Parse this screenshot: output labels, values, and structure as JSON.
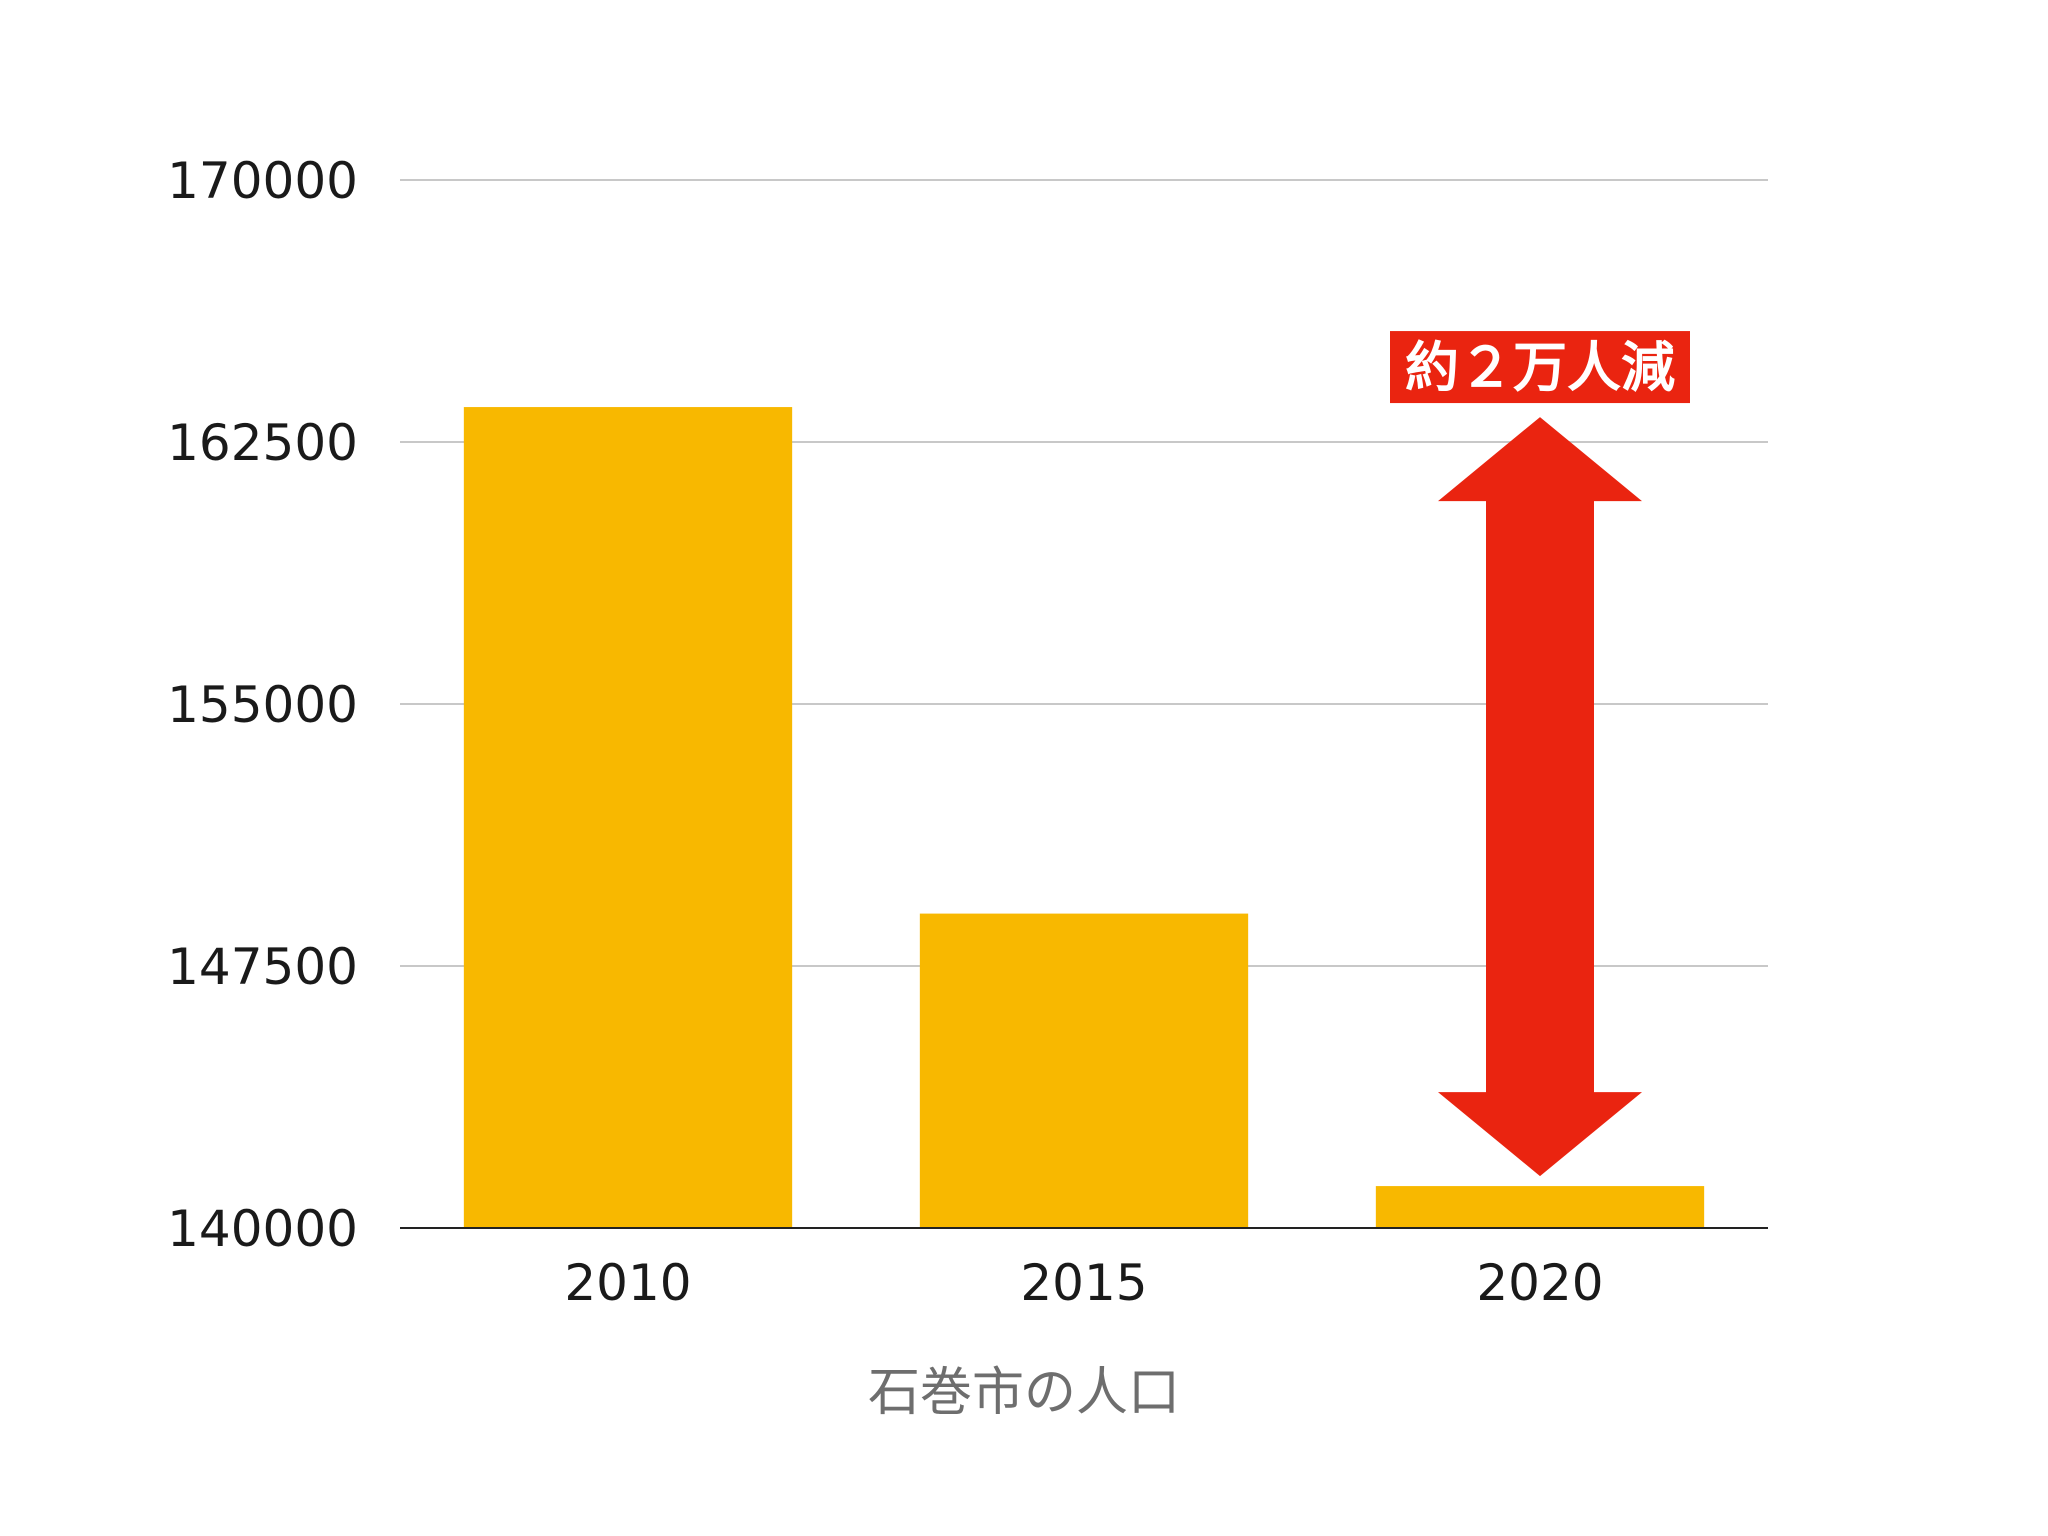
{
  "chart_data": {
    "type": "bar",
    "categories": [
      "2010",
      "2015",
      "2020"
    ],
    "values": [
      163500,
      149000,
      141200
    ],
    "xlabel": "石巻市の人口",
    "ylabel": "",
    "ylim": [
      140000,
      170000
    ],
    "yticks": [
      170000,
      162500,
      155000,
      147500,
      140000
    ],
    "ytick_labels": [
      "170000",
      "162500",
      "155000",
      "147500",
      "140000"
    ],
    "grid": true,
    "legend": "none",
    "annotation": {
      "text": "約２万人減",
      "category": "2020",
      "from_value": 163500,
      "to_value": 141200
    },
    "colors": {
      "bar": "#F8B800",
      "arrow": "#EA2410",
      "grid": "#c8c8c8",
      "axis": "#222222"
    }
  }
}
